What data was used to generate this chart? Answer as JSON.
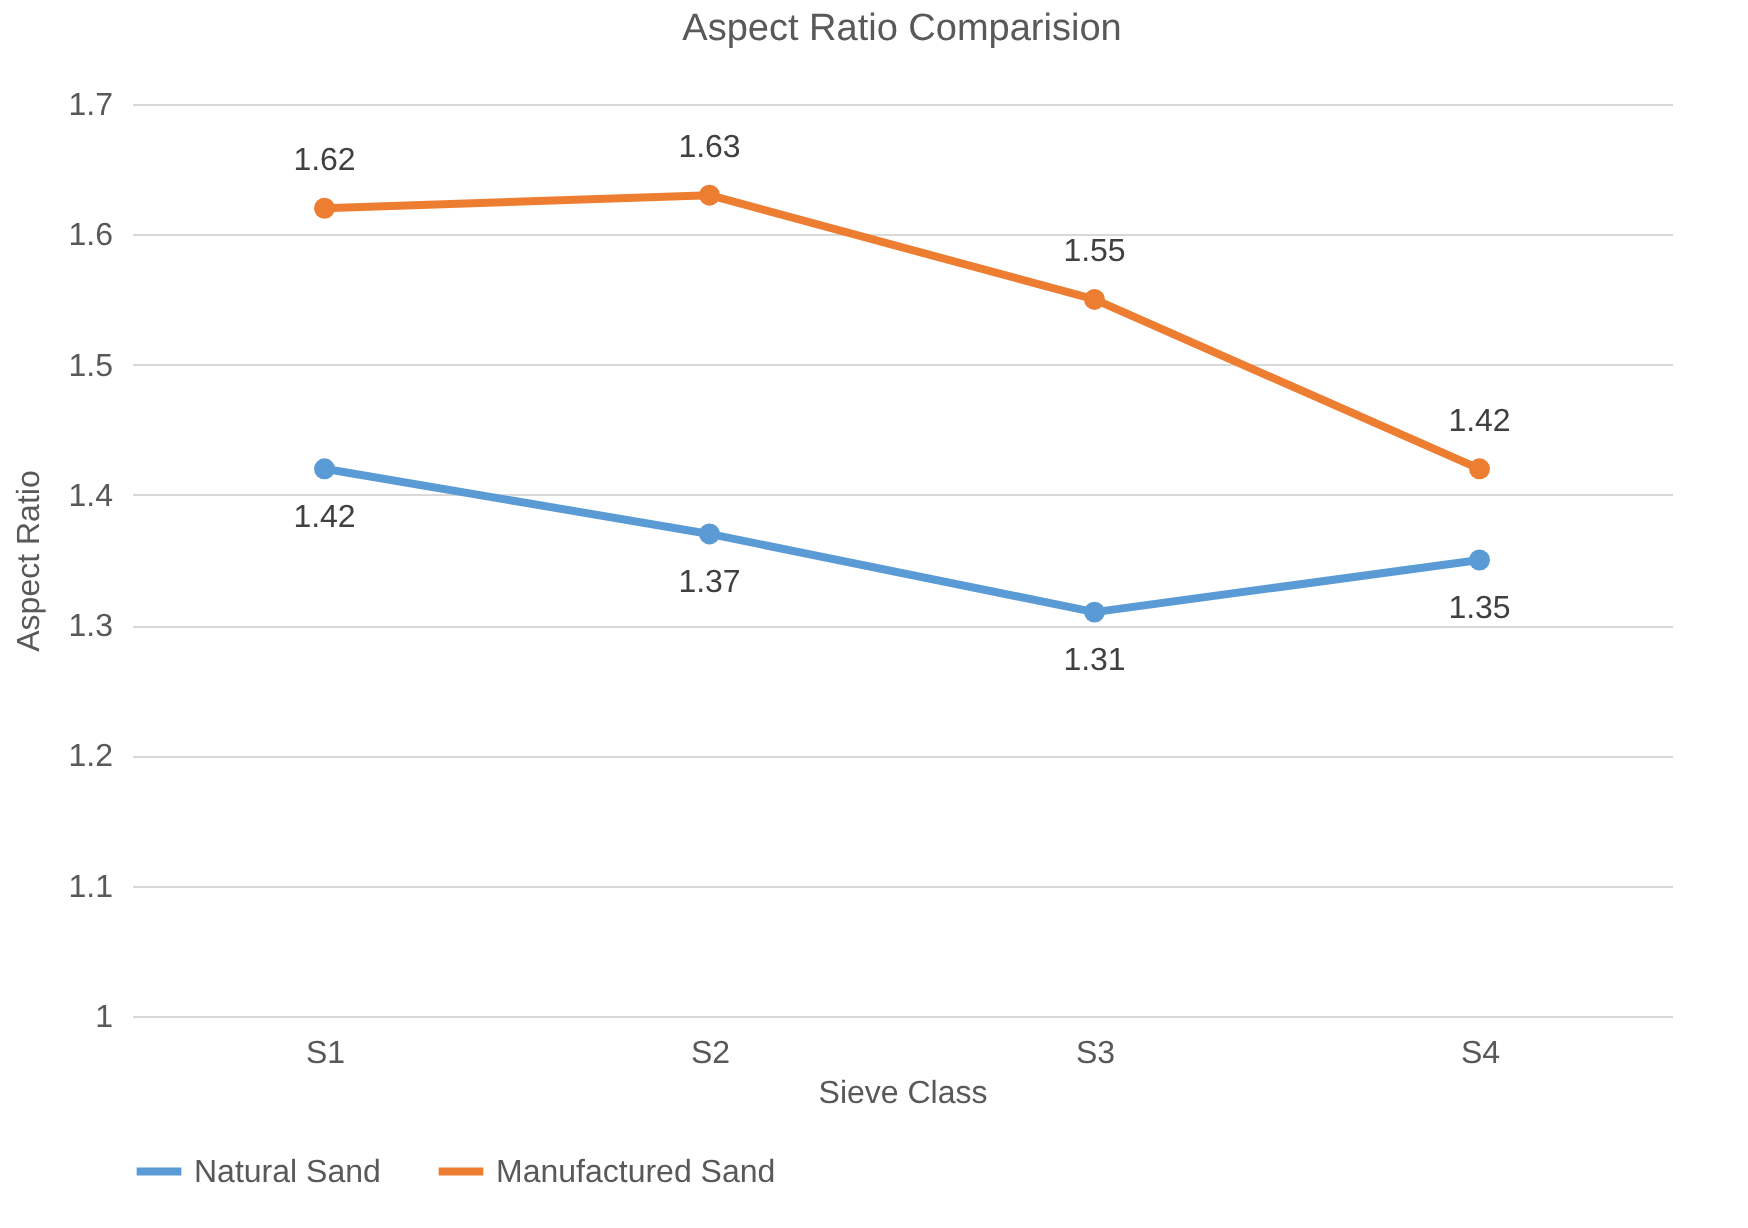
{
  "chart_data": {
    "type": "line",
    "title": "Aspect Ratio Comparision",
    "xlabel": "Sieve Class",
    "ylabel": "Aspect Ratio",
    "categories": [
      "S1",
      "S2",
      "S3",
      "S4"
    ],
    "series": [
      {
        "name": "Natural Sand",
        "color": "#5b9bd5",
        "values": [
          1.42,
          1.37,
          1.31,
          1.35
        ]
      },
      {
        "name": "Manufactured Sand",
        "color": "#ed7d31",
        "values": [
          1.62,
          1.63,
          1.55,
          1.42
        ]
      }
    ],
    "ylim": [
      1,
      1.7
    ],
    "yticks": [
      1,
      1.1,
      1.2,
      1.3,
      1.4,
      1.5,
      1.6,
      1.7
    ],
    "grid": "y",
    "legend": "bottom",
    "marker": "circle",
    "line_style": "solid",
    "data_labels": true
  }
}
